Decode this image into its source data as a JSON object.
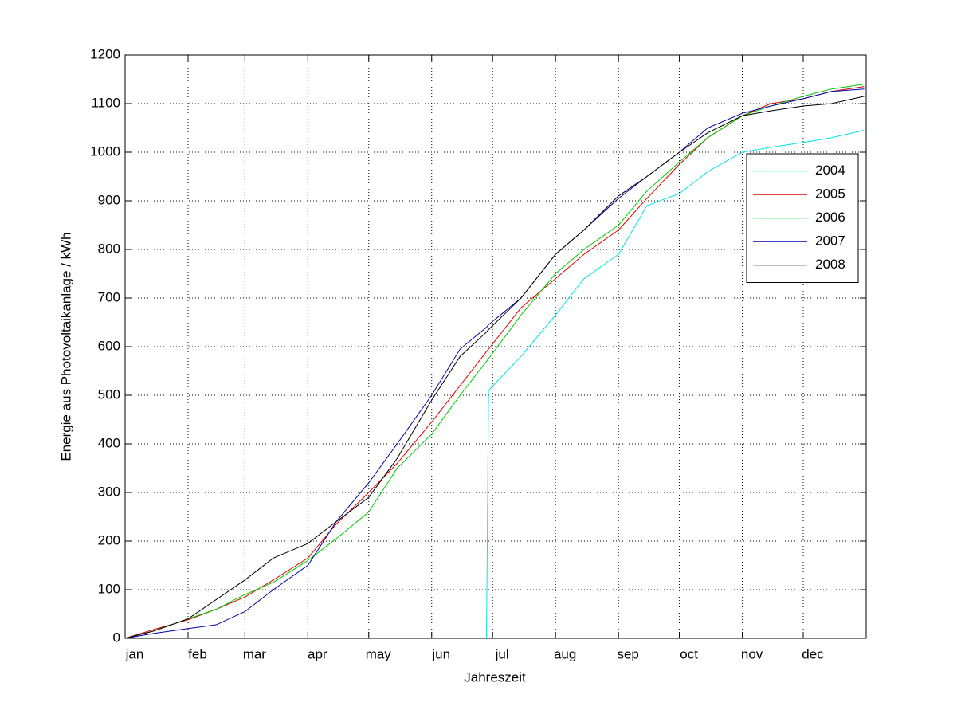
{
  "chart_data": {
    "type": "line",
    "x_label": "Jahreszeit",
    "y_label": "Energie aus Photovoltaikanlage / kWh",
    "x": [
      1,
      15,
      32,
      46,
      60,
      74,
      91,
      105,
      121,
      135,
      152,
      166,
      179,
      180,
      196,
      213,
      227,
      244,
      258,
      274,
      288,
      305,
      319,
      335,
      349,
      365
    ],
    "xlim": [
      1,
      366
    ],
    "xticks": [
      {
        "value": 1,
        "label": "jan"
      },
      {
        "value": 32,
        "label": "feb"
      },
      {
        "value": 60,
        "label": "mar"
      },
      {
        "value": 91,
        "label": "apr"
      },
      {
        "value": 121,
        "label": "may"
      },
      {
        "value": 152,
        "label": "jun"
      },
      {
        "value": 182,
        "label": "jul"
      },
      {
        "value": 213,
        "label": "aug"
      },
      {
        "value": 244,
        "label": "sep"
      },
      {
        "value": 274,
        "label": "oct"
      },
      {
        "value": 305,
        "label": "nov"
      },
      {
        "value": 335,
        "label": "dec"
      }
    ],
    "ylim": [
      0,
      1200
    ],
    "yticks": [
      0,
      100,
      200,
      300,
      400,
      500,
      600,
      700,
      800,
      900,
      1000,
      1100,
      1200
    ],
    "grid": true,
    "legend": "northeast",
    "series": [
      {
        "name": "2004",
        "color": "#00e5e5",
        "values": [
          null,
          null,
          null,
          null,
          null,
          null,
          null,
          null,
          null,
          null,
          null,
          null,
          0,
          510,
          580,
          665,
          740,
          790,
          890,
          915,
          960,
          1000,
          1010,
          1020,
          1030,
          1045
        ]
      },
      {
        "name": "2005",
        "color": "#e50000",
        "values": [
          0,
          18,
          38,
          60,
          85,
          120,
          165,
          235,
          300,
          360,
          445,
          520,
          590,
          595,
          680,
          740,
          790,
          840,
          905,
          975,
          1030,
          1075,
          1100,
          1110,
          1125,
          1135
        ]
      },
      {
        "name": "2006",
        "color": "#00cc00",
        "values": [
          0,
          15,
          40,
          60,
          90,
          115,
          160,
          205,
          260,
          350,
          420,
          500,
          570,
          575,
          665,
          750,
          800,
          850,
          920,
          980,
          1030,
          1075,
          1095,
          1115,
          1130,
          1140
        ]
      },
      {
        "name": "2007",
        "color": "#0000b0",
        "values": [
          0,
          10,
          20,
          28,
          55,
          100,
          150,
          240,
          320,
          400,
          500,
          595,
          640,
          645,
          700,
          790,
          840,
          905,
          950,
          1000,
          1050,
          1080,
          1095,
          1110,
          1125,
          1130
        ]
      },
      {
        "name": "2008",
        "color": "#000000",
        "values": [
          0,
          15,
          40,
          80,
          120,
          165,
          195,
          240,
          290,
          370,
          490,
          580,
          630,
          635,
          700,
          790,
          840,
          910,
          950,
          1000,
          1040,
          1075,
          1085,
          1095,
          1100,
          1115
        ]
      }
    ]
  }
}
